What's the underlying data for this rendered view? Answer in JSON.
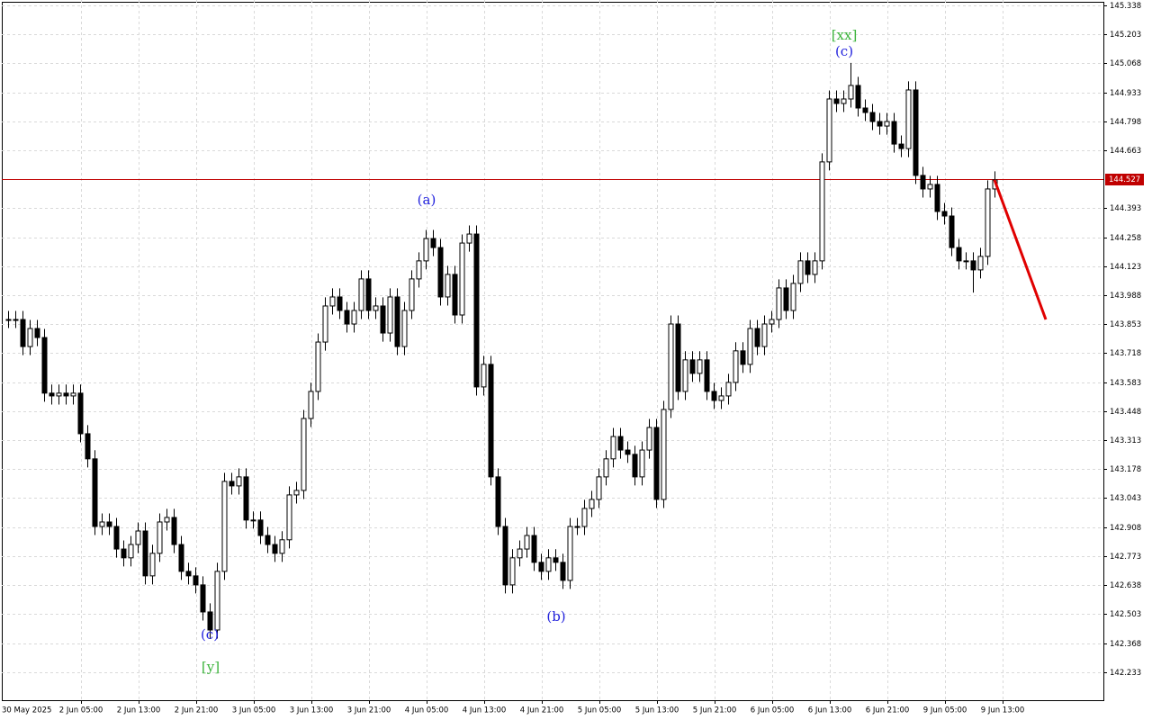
{
  "chart_data": {
    "type": "candlestick",
    "up_color": "#ffffff",
    "down_color": "#000000",
    "outline_color": "#000000",
    "grid": true,
    "ylim": [
      142.102,
      145.363
    ],
    "yticks": [
      145.338,
      145.203,
      145.068,
      144.933,
      144.798,
      144.663,
      144.393,
      144.258,
      144.123,
      143.988,
      143.853,
      143.718,
      143.583,
      143.448,
      143.313,
      143.178,
      143.043,
      142.908,
      142.773,
      142.638,
      142.503,
      142.368,
      142.233
    ],
    "xlabels": [
      "30 May 2025",
      "2 Jun 05:00",
      "2 Jun 13:00",
      "2 Jun 21:00",
      "3 Jun 05:00",
      "3 Jun 13:00",
      "3 Jun 21:00",
      "4 Jun 05:00",
      "4 Jun 13:00",
      "4 Jun 21:00",
      "5 Jun 05:00",
      "5 Jun 13:00",
      "5 Jun 21:00",
      "6 Jun 05:00",
      "6 Jun 13:00",
      "6 Jun 21:00",
      "9 Jun 05:00",
      "9 Jun 13:00"
    ],
    "current_price": {
      "value": 144.527,
      "color": "#c00000"
    },
    "forecast": {
      "values": [
        144.525,
        143.875
      ],
      "color": "#e00000"
    },
    "annotations": [
      {
        "text": "[xx]",
        "color": "#3cb43c"
      },
      {
        "text": "(c)",
        "color": "#2222dd"
      },
      {
        "text": "(a)",
        "color": "#2222dd"
      },
      {
        "text": "(b)",
        "color": "#2222dd"
      },
      {
        "text": "(c)",
        "color": "#2222dd"
      },
      {
        "text": "[y]",
        "color": "#3cb43c"
      }
    ],
    "open": [
      143.875,
      143.875,
      143.875,
      143.749,
      143.833,
      143.791,
      143.532,
      143.519,
      143.532,
      143.519,
      143.532,
      143.343,
      143.226,
      142.911,
      142.932,
      142.911,
      142.806,
      142.765,
      142.827,
      142.89,
      142.681,
      142.786,
      142.932,
      142.953,
      142.827,
      142.702,
      142.681,
      142.639,
      142.513,
      142.429,
      142.702,
      143.121,
      143.1,
      143.142,
      142.941,
      142.941,
      142.869,
      142.827,
      142.786,
      142.849,
      143.058,
      143.079,
      143.414,
      143.54,
      143.77,
      143.938,
      143.98,
      143.917,
      143.854,
      143.917,
      144.064,
      143.917,
      143.938,
      143.812,
      143.98,
      143.749,
      143.917,
      144.064,
      144.148,
      144.252,
      144.21,
      143.98,
      144.085,
      143.896,
      144.231,
      144.273,
      143.561,
      143.666,
      143.142,
      142.911,
      142.639,
      142.765,
      142.806,
      142.869,
      142.744,
      142.702,
      142.765,
      142.744,
      142.66,
      142.911,
      142.911,
      142.995,
      143.037,
      143.142,
      143.226,
      143.33,
      143.267,
      143.247,
      143.142,
      143.267,
      143.372,
      143.037,
      143.456,
      143.854,
      143.54,
      143.687,
      143.624,
      143.687,
      143.54,
      143.498,
      143.519,
      143.582,
      143.729,
      143.666,
      143.833,
      143.749,
      143.854,
      143.875,
      144.022,
      143.917,
      144.043,
      144.148,
      144.085,
      144.148,
      144.609,
      144.902,
      144.881,
      144.902,
      144.965,
      144.86,
      144.839,
      144.797,
      144.776,
      144.797,
      144.692,
      144.671,
      144.944,
      144.546,
      144.483,
      144.504,
      144.378,
      144.357,
      144.21,
      144.148,
      144.148,
      144.106,
      144.169,
      144.483
    ],
    "high": [
      143.915,
      143.915,
      143.915,
      143.873,
      143.873,
      143.831,
      143.572,
      143.572,
      143.572,
      143.572,
      143.572,
      143.383,
      143.266,
      142.972,
      142.972,
      142.951,
      142.846,
      142.867,
      142.93,
      142.93,
      142.826,
      142.972,
      142.993,
      142.993,
      142.867,
      142.742,
      142.721,
      142.679,
      142.553,
      142.742,
      143.161,
      143.161,
      143.182,
      143.182,
      142.981,
      142.981,
      142.909,
      142.867,
      142.889,
      143.098,
      143.119,
      143.454,
      143.58,
      143.81,
      143.978,
      144.02,
      144.02,
      143.957,
      143.957,
      144.104,
      144.104,
      143.978,
      143.978,
      144.02,
      144.02,
      143.957,
      144.104,
      144.188,
      144.292,
      144.292,
      144.25,
      144.125,
      144.125,
      144.271,
      144.313,
      144.313,
      143.706,
      143.706,
      143.182,
      142.951,
      142.805,
      142.846,
      142.909,
      142.909,
      142.784,
      142.805,
      142.805,
      142.784,
      142.951,
      142.951,
      143.035,
      143.077,
      143.182,
      143.266,
      143.37,
      143.37,
      143.307,
      143.287,
      143.307,
      143.412,
      143.412,
      143.496,
      143.894,
      143.894,
      143.727,
      143.727,
      143.727,
      143.727,
      143.58,
      143.559,
      143.622,
      143.769,
      143.769,
      143.873,
      143.873,
      143.894,
      143.915,
      144.062,
      144.062,
      144.083,
      144.188,
      144.188,
      144.188,
      144.649,
      144.942,
      144.942,
      144.942,
      145.07,
      145.005,
      144.9,
      144.879,
      144.837,
      144.837,
      144.837,
      144.732,
      144.984,
      144.984,
      144.586,
      144.544,
      144.544,
      144.418,
      144.397,
      144.25,
      144.188,
      144.188,
      144.209,
      144.523,
      144.565
    ],
    "low": [
      143.835,
      143.835,
      143.709,
      143.709,
      143.751,
      143.492,
      143.479,
      143.479,
      143.479,
      143.479,
      143.303,
      143.186,
      142.871,
      142.871,
      142.871,
      142.766,
      142.725,
      142.725,
      142.787,
      142.641,
      142.641,
      142.746,
      142.892,
      142.787,
      142.662,
      142.641,
      142.599,
      142.473,
      142.389,
      142.389,
      142.662,
      143.06,
      143.06,
      142.901,
      142.901,
      142.829,
      142.787,
      142.746,
      142.746,
      142.809,
      143.018,
      143.039,
      143.374,
      143.5,
      143.73,
      143.898,
      143.877,
      143.814,
      143.814,
      143.877,
      143.877,
      143.877,
      143.772,
      143.772,
      143.709,
      143.709,
      143.877,
      144.024,
      144.108,
      144.17,
      143.94,
      143.94,
      143.856,
      143.856,
      144.191,
      143.521,
      143.521,
      143.102,
      142.871,
      142.599,
      142.599,
      142.725,
      142.766,
      142.704,
      142.662,
      142.662,
      142.704,
      142.62,
      142.62,
      142.871,
      142.871,
      142.955,
      142.997,
      143.102,
      143.186,
      143.227,
      143.207,
      143.102,
      143.102,
      143.227,
      142.997,
      142.997,
      143.416,
      143.5,
      143.5,
      143.584,
      143.584,
      143.5,
      143.458,
      143.458,
      143.479,
      143.542,
      143.626,
      143.626,
      143.709,
      143.709,
      143.814,
      143.835,
      143.877,
      143.877,
      144.003,
      144.045,
      144.045,
      144.108,
      144.569,
      144.841,
      144.841,
      144.862,
      144.82,
      144.799,
      144.757,
      144.736,
      144.736,
      144.652,
      144.631,
      144.631,
      144.506,
      144.443,
      144.443,
      144.338,
      144.317,
      144.17,
      144.108,
      144.108,
      144.0,
      144.066,
      144.129,
      144.443
    ],
    "close": [
      143.875,
      143.875,
      143.749,
      143.833,
      143.791,
      143.532,
      143.519,
      143.532,
      143.519,
      143.532,
      143.343,
      143.226,
      142.911,
      142.932,
      142.911,
      142.806,
      142.765,
      142.827,
      142.89,
      142.681,
      142.786,
      142.932,
      142.953,
      142.827,
      142.702,
      142.681,
      142.639,
      142.513,
      142.429,
      142.702,
      143.121,
      143.1,
      143.142,
      142.941,
      142.941,
      142.869,
      142.827,
      142.786,
      142.849,
      143.058,
      143.079,
      143.414,
      143.54,
      143.77,
      143.938,
      143.98,
      143.917,
      143.854,
      143.917,
      144.064,
      143.917,
      143.938,
      143.812,
      143.98,
      143.749,
      143.917,
      144.064,
      144.148,
      144.252,
      144.21,
      143.98,
      144.085,
      143.896,
      144.231,
      144.273,
      143.561,
      143.666,
      143.142,
      142.911,
      142.639,
      142.765,
      142.806,
      142.869,
      142.744,
      142.702,
      142.765,
      142.744,
      142.66,
      142.911,
      142.911,
      142.995,
      143.037,
      143.142,
      143.226,
      143.33,
      143.267,
      143.247,
      143.142,
      143.267,
      143.372,
      143.037,
      143.456,
      143.854,
      143.54,
      143.687,
      143.624,
      143.687,
      143.54,
      143.498,
      143.519,
      143.582,
      143.729,
      143.666,
      143.833,
      143.749,
      143.854,
      143.875,
      144.022,
      143.917,
      144.043,
      144.148,
      144.085,
      144.148,
      144.609,
      144.902,
      144.881,
      144.902,
      144.965,
      144.86,
      144.839,
      144.797,
      144.776,
      144.797,
      144.692,
      144.671,
      144.944,
      144.546,
      144.483,
      144.504,
      144.378,
      144.357,
      144.21,
      144.148,
      144.148,
      144.106,
      144.169,
      144.483,
      144.525
    ]
  }
}
